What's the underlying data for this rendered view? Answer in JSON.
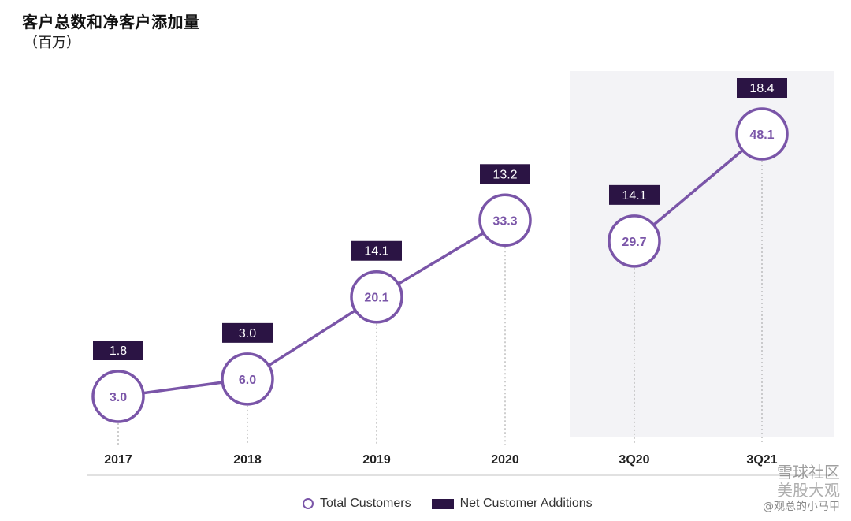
{
  "title": "客户总数和净客户添加量",
  "subtitle": "（百万）",
  "legend": {
    "total_customers": "Total Customers",
    "net_additions": "Net Customer Additions"
  },
  "watermark": {
    "line1": "雪球社区",
    "line2": "美股大观",
    "line3": "@观总的小马甲"
  },
  "colors": {
    "purple": "#7a55a8",
    "dark": "#2b1444",
    "shaded": "#f3f3f6",
    "axis": "#cfcfcf"
  },
  "chart_data": {
    "type": "line",
    "categories": [
      "2017",
      "2018",
      "2019",
      "2020",
      "3Q20",
      "3Q21"
    ],
    "series": [
      {
        "name": "Total Customers",
        "values": [
          3.0,
          6.0,
          20.1,
          33.3,
          29.7,
          48.1
        ],
        "labels": [
          "3.0",
          "6.0",
          "20.1",
          "33.3",
          "29.7",
          "48.1"
        ],
        "segments": [
          [
            0,
            3
          ],
          [
            4,
            5
          ]
        ]
      },
      {
        "name": "Net Customer Additions",
        "values": [
          1.8,
          3.0,
          14.1,
          13.2,
          14.1,
          18.4
        ],
        "labels": [
          "1.8",
          "3.0",
          "14.1",
          "13.2",
          "14.1",
          "18.4"
        ]
      }
    ],
    "shaded_categories": [
      "3Q20",
      "3Q21"
    ],
    "ylim": [
      3.0,
      48.1
    ]
  }
}
